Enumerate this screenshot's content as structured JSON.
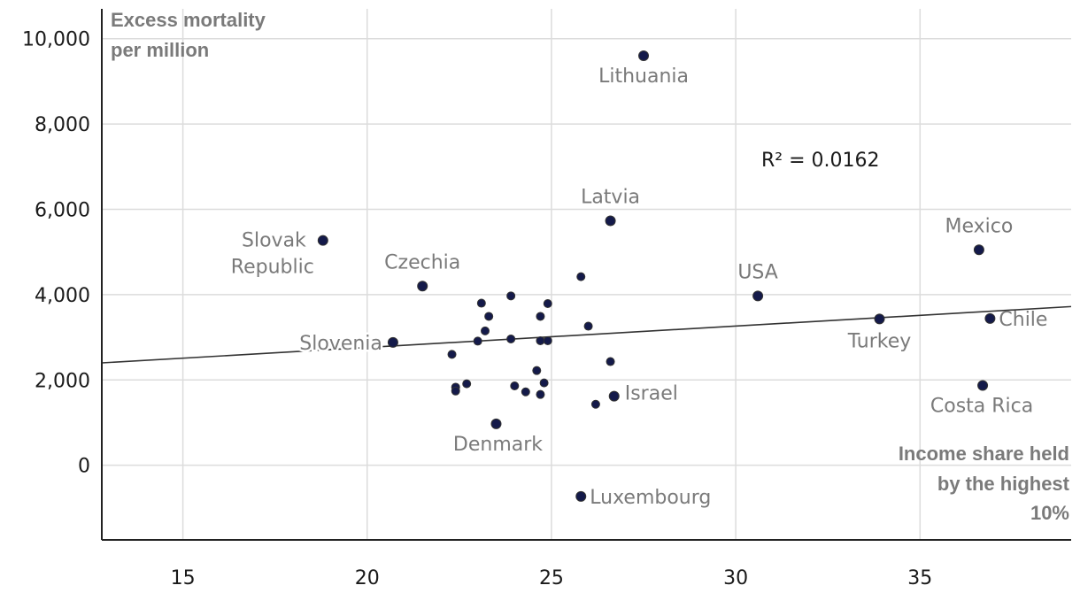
{
  "chart_data": {
    "type": "scatter",
    "title": "",
    "ylabel_lines": [
      "Excess mortality",
      "per million"
    ],
    "xlabel_lines": [
      "Income share held",
      "by the highest",
      "10%"
    ],
    "xlim": [
      12.8,
      39.1
    ],
    "ylim": [
      -1750,
      10700
    ],
    "x_ticks": [
      15,
      20,
      25,
      30,
      35
    ],
    "x_tick_labels": [
      "15",
      "20",
      "25",
      "30",
      "35"
    ],
    "y_ticks": [
      0,
      2000,
      4000,
      6000,
      8000,
      10000
    ],
    "y_tick_labels": [
      "0",
      "2,000",
      "4,000",
      "6,000",
      "8,000",
      "10,000"
    ],
    "grid": true,
    "r_squared_text": "R² = 0.0162",
    "trendline": {
      "x": [
        12.8,
        39.1
      ],
      "y": [
        2400,
        3720
      ]
    },
    "point_color": "#141a4a",
    "points": [
      {
        "label": "Lithuania",
        "x": 27.5,
        "y": 9600
      },
      {
        "label": "Latvia",
        "x": 26.6,
        "y": 5730
      },
      {
        "label": "Slovak Republic",
        "x": 18.8,
        "y": 5270
      },
      {
        "label": "Czechia",
        "x": 21.5,
        "y": 4200
      },
      {
        "label": "Slovenia",
        "x": 20.7,
        "y": 2880
      },
      {
        "label": "Denmark",
        "x": 23.5,
        "y": 970
      },
      {
        "label": "Luxembourg",
        "x": 25.8,
        "y": -730
      },
      {
        "label": "Israel",
        "x": 26.7,
        "y": 1620
      },
      {
        "label": "USA",
        "x": 30.6,
        "y": 3970
      },
      {
        "label": "Mexico",
        "x": 36.6,
        "y": 5050
      },
      {
        "label": "Turkey",
        "x": 33.9,
        "y": 3430
      },
      {
        "label": "Chile",
        "x": 36.9,
        "y": 3440
      },
      {
        "label": "Costa Rica",
        "x": 36.7,
        "y": 1870
      },
      {
        "label": "",
        "x": 23.1,
        "y": 3800
      },
      {
        "label": "",
        "x": 23.9,
        "y": 3970
      },
      {
        "label": "",
        "x": 23.3,
        "y": 3490
      },
      {
        "label": "",
        "x": 23.2,
        "y": 3150
      },
      {
        "label": "",
        "x": 24.7,
        "y": 3490
      },
      {
        "label": "",
        "x": 24.9,
        "y": 3790
      },
      {
        "label": "",
        "x": 25.8,
        "y": 4420
      },
      {
        "label": "",
        "x": 26.0,
        "y": 3260
      },
      {
        "label": "",
        "x": 23.0,
        "y": 2910
      },
      {
        "label": "",
        "x": 23.9,
        "y": 2960
      },
      {
        "label": "",
        "x": 24.7,
        "y": 2920
      },
      {
        "label": "",
        "x": 24.9,
        "y": 2920
      },
      {
        "label": "",
        "x": 22.3,
        "y": 2600
      },
      {
        "label": "",
        "x": 24.6,
        "y": 2220
      },
      {
        "label": "",
        "x": 26.6,
        "y": 2430
      },
      {
        "label": "",
        "x": 22.7,
        "y": 1910
      },
      {
        "label": "",
        "x": 22.4,
        "y": 1830
      },
      {
        "label": "",
        "x": 22.4,
        "y": 1740
      },
      {
        "label": "",
        "x": 24.0,
        "y": 1860
      },
      {
        "label": "",
        "x": 24.3,
        "y": 1720
      },
      {
        "label": "",
        "x": 24.7,
        "y": 1660
      },
      {
        "label": "",
        "x": 24.8,
        "y": 1930
      },
      {
        "label": "",
        "x": 26.2,
        "y": 1430
      }
    ]
  }
}
